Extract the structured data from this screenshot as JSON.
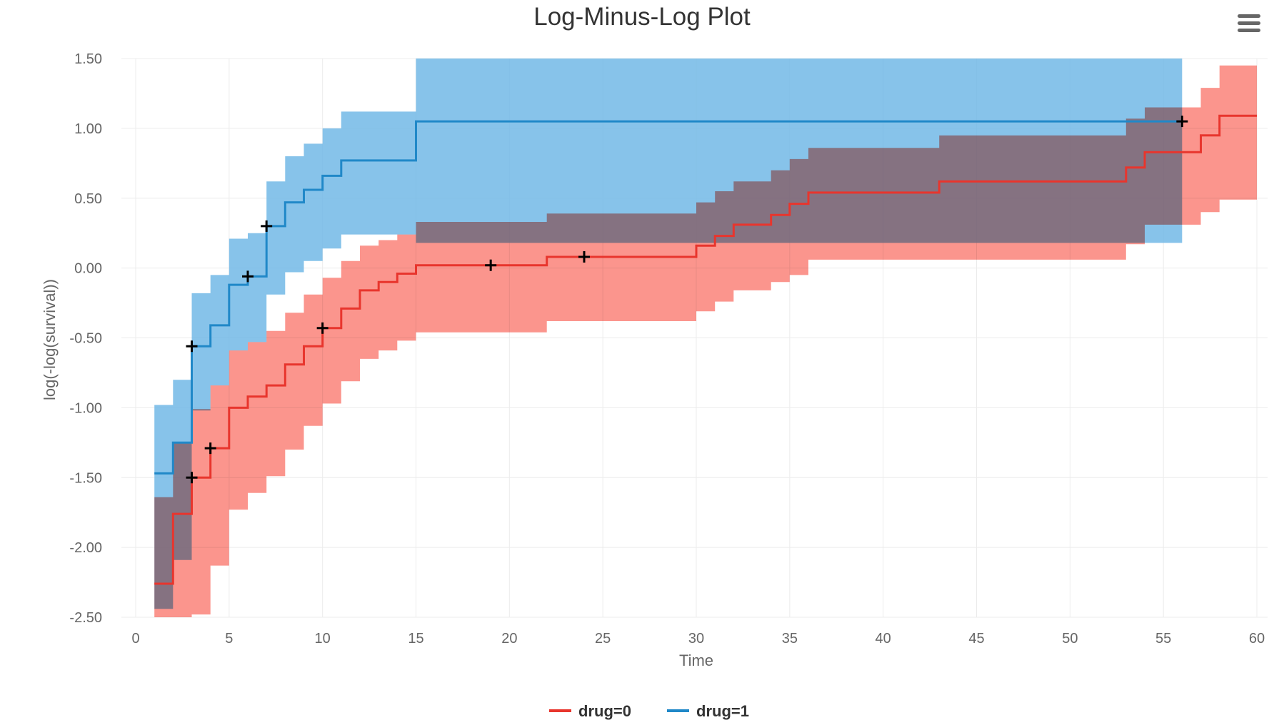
{
  "chart_data": {
    "type": "line",
    "title": "Log-Minus-Log Plot",
    "xlabel": "Time",
    "ylabel": "log(-log(survival))",
    "xlim": [
      0,
      60
    ],
    "ylim": [
      -2.5,
      1.5
    ],
    "xticks": [
      "0",
      "5",
      "10",
      "15",
      "20",
      "25",
      "30",
      "35",
      "40",
      "45",
      "50",
      "55",
      "60"
    ],
    "xtick_values": [
      0,
      5,
      10,
      15,
      20,
      25,
      30,
      35,
      40,
      45,
      50,
      55,
      60
    ],
    "yticks": [
      "1.50",
      "1.00",
      "0.50",
      "0.00",
      "-0.50",
      "-1.00",
      "-1.50",
      "-2.00",
      "-2.50"
    ],
    "ytick_values": [
      1.5,
      1.0,
      0.5,
      0.0,
      -0.5,
      -1.0,
      -1.5,
      -2.0,
      -2.5
    ],
    "grid": true,
    "legend_position": "bottom-center",
    "series": [
      {
        "name": "drug=0",
        "color": "#e8352d",
        "band_color": "#fa7a70",
        "step": true,
        "x": [
          1,
          2,
          3,
          4,
          5,
          6,
          7,
          8,
          9,
          10,
          11,
          12,
          13,
          14,
          15,
          22,
          30,
          31,
          32,
          34,
          35,
          36,
          43,
          53,
          54,
          57,
          58,
          60
        ],
        "y": [
          -2.26,
          -1.76,
          -1.5,
          -1.29,
          -1.0,
          -0.92,
          -0.84,
          -0.69,
          -0.56,
          -0.43,
          -0.29,
          -0.16,
          -0.1,
          -0.04,
          0.02,
          0.08,
          0.16,
          0.23,
          0.31,
          0.38,
          0.46,
          0.54,
          0.62,
          0.72,
          0.83,
          0.95,
          1.09,
          1.09
        ],
        "lower": [
          -2.5,
          -2.5,
          -2.48,
          -2.13,
          -1.73,
          -1.61,
          -1.49,
          -1.3,
          -1.13,
          -0.97,
          -0.81,
          -0.65,
          -0.59,
          -0.52,
          -0.46,
          -0.38,
          -0.31,
          -0.24,
          -0.16,
          -0.1,
          -0.05,
          0.06,
          0.06,
          0.17,
          0.31,
          0.4,
          0.49,
          0.49
        ],
        "upper": [
          -1.64,
          -1.25,
          -1.01,
          -0.84,
          -0.59,
          -0.53,
          -0.45,
          -0.32,
          -0.19,
          -0.07,
          0.05,
          0.16,
          0.2,
          0.24,
          0.33,
          0.39,
          0.47,
          0.55,
          0.62,
          0.7,
          0.78,
          0.86,
          0.95,
          1.07,
          1.15,
          1.29,
          1.45,
          1.45
        ],
        "censor_x": [
          3,
          4,
          10,
          19,
          24
        ],
        "censor_y": [
          -1.5,
          -1.29,
          -0.43,
          0.02,
          0.08
        ]
      },
      {
        "name": "drug=1",
        "color": "#2088c8",
        "band_color": "#72b9e6",
        "step": true,
        "x": [
          1,
          2,
          3,
          4,
          5,
          6,
          7,
          8,
          9,
          10,
          11,
          15,
          56
        ],
        "y": [
          -1.47,
          -1.25,
          -0.56,
          -0.41,
          -0.12,
          -0.06,
          0.3,
          0.47,
          0.56,
          0.66,
          0.77,
          1.05,
          1.05
        ],
        "lower": [
          -2.44,
          -2.09,
          -1.02,
          -0.84,
          -0.59,
          -0.53,
          -0.19,
          -0.03,
          0.05,
          0.14,
          0.24,
          0.18,
          0.18
        ],
        "upper": [
          -0.98,
          -0.8,
          -0.18,
          -0.05,
          0.21,
          0.25,
          0.62,
          0.8,
          0.89,
          1.0,
          1.12,
          1.5,
          1.5
        ],
        "censor_x": [
          3,
          6,
          7,
          56
        ],
        "censor_y": [
          -0.56,
          -0.06,
          0.3,
          1.05
        ]
      }
    ]
  },
  "menu": {
    "icon": "hamburger-menu-icon"
  }
}
